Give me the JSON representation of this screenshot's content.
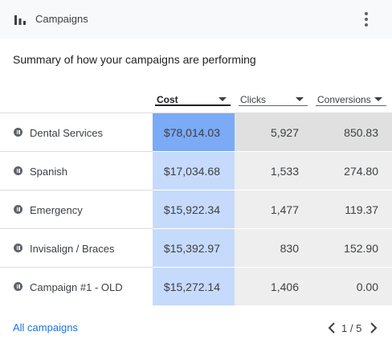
{
  "header": {
    "title": "Campaigns",
    "icon": "bar-chart-icon",
    "menu_icon": "more-vert-icon"
  },
  "subtitle": "Summary of how your campaigns are performing",
  "columns": {
    "cost": "Cost",
    "clicks": "Clicks",
    "conversions": "Conversions"
  },
  "rows": [
    {
      "name": "Dental Services",
      "cost": "$78,014.03",
      "clicks": "5,927",
      "conversions": "850.83"
    },
    {
      "name": "Spanish",
      "cost": "$17,034.68",
      "clicks": "1,533",
      "conversions": "274.80"
    },
    {
      "name": "Emergency",
      "cost": "$15,922.34",
      "clicks": "1,477",
      "conversions": "119.37"
    },
    {
      "name": "Invisalign / Braces",
      "cost": "$15,392.97",
      "clicks": "830",
      "conversions": "152.90"
    },
    {
      "name": "Campaign #1 - OLD",
      "cost": "$15,272.14",
      "clicks": "1,406",
      "conversions": "0.00"
    }
  ],
  "colors": {
    "cost_max": "#7baaf7",
    "cost": "#c6dafc",
    "clicks_max": "#e0e0e0",
    "clicks": "#eeeeee",
    "conv_max": "#e0e0e0",
    "conv": "#eeeeee",
    "link": "#1a73e8"
  },
  "footer": {
    "link": "All campaigns",
    "page_current": "1",
    "page_total": "5",
    "page_sep": "/"
  }
}
